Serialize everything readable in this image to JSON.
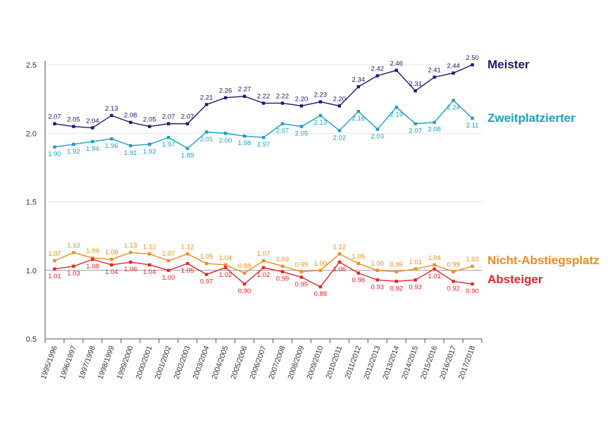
{
  "chart_data": {
    "type": "line",
    "title": "",
    "xlabel": "",
    "ylabel": "",
    "ylim": [
      0.5,
      2.5
    ],
    "yticks": [
      "0.5",
      "1.0",
      "1.5",
      "2.0",
      "2.5"
    ],
    "grid": true,
    "legend": "right, next to line ends",
    "categories": [
      "1995/1996",
      "1996/1997",
      "1997/1998",
      "1998/1999",
      "1999/2000",
      "2000/2001",
      "2001/2002",
      "2002/2003",
      "2003/2004",
      "2004/2005",
      "2005/2006",
      "2006/2007",
      "2007/2008",
      "2008/2009",
      "2009/2010",
      "2010/2011",
      "2011/2012",
      "2012/2013",
      "2013/2014",
      "2014/2015",
      "2015/2016",
      "2016/2017",
      "2017/2018"
    ],
    "series": [
      {
        "name": "Meister",
        "color": "#1b1a6e",
        "values": [
          2.07,
          2.05,
          2.04,
          2.13,
          2.08,
          2.05,
          2.07,
          2.07,
          2.21,
          2.26,
          2.27,
          2.22,
          2.22,
          2.2,
          2.23,
          2.2,
          2.34,
          2.42,
          2.46,
          2.31,
          2.41,
          2.44,
          2.5
        ],
        "labels": [
          "2.07",
          "2.05",
          "2.04",
          "2.13",
          "2.08",
          "2.05",
          "2.07",
          "2.07",
          "2.21",
          "2.26",
          "2.27",
          "2.22",
          "2.22",
          "2.20",
          "2.23",
          "2.20",
          "2.34",
          "2.42",
          "2.46",
          "2.31",
          "2.41",
          "2.44",
          "2.50"
        ]
      },
      {
        "name": "Zweitplatzierter",
        "color": "#1aa0c0",
        "values": [
          1.9,
          1.92,
          1.94,
          1.96,
          1.91,
          1.92,
          1.97,
          1.89,
          2.01,
          2.0,
          1.98,
          1.97,
          2.07,
          2.05,
          2.13,
          2.02,
          2.16,
          2.03,
          2.19,
          2.07,
          2.08,
          2.24,
          2.11
        ],
        "labels": [
          "1.90",
          "1.92",
          "1.94",
          "1.96",
          "1.91",
          "1.92",
          "1.97",
          "1.89",
          "2.01",
          "2.00",
          "1.98",
          "1.97",
          "2.07",
          "2.05",
          "2.13",
          "2.02",
          "2.16",
          "2.03",
          "2.19",
          "2.07",
          "2.08",
          "2.24",
          "2.11"
        ]
      },
      {
        "name": "Nicht-Abstiegsplatz",
        "color": "#f08a1c",
        "values": [
          1.07,
          1.13,
          1.09,
          1.08,
          1.13,
          1.12,
          1.07,
          1.12,
          1.05,
          1.04,
          0.98,
          1.07,
          1.03,
          0.99,
          1.0,
          1.12,
          1.05,
          1.0,
          0.99,
          1.01,
          1.04,
          0.99,
          1.03
        ],
        "labels": [
          "1.07",
          "1.13",
          "1.09",
          "1.08",
          "1.13",
          "1.12",
          "1.07",
          "1.12",
          "1.05",
          "1.04",
          "0.98",
          "1.07",
          "1.03",
          "0.99",
          "1.00",
          "1.12",
          "1.05",
          "1.00",
          "0.99",
          "1.01",
          "1.04",
          "0.99",
          "1.03"
        ]
      },
      {
        "name": "Absteiger",
        "color": "#e0262b",
        "values": [
          1.01,
          1.03,
          1.08,
          1.04,
          1.06,
          1.04,
          1.0,
          1.05,
          0.97,
          1.02,
          0.9,
          1.02,
          0.99,
          0.95,
          0.88,
          1.06,
          0.98,
          0.93,
          0.92,
          0.93,
          1.01,
          0.92,
          0.9
        ],
        "labels": [
          "1.01",
          "1.03",
          "1.08",
          "1.04",
          "1.06",
          "1.04",
          "1.00",
          "1.05",
          "0.97",
          "1.02",
          "0.90",
          "1.02",
          "0.99",
          "0.95",
          "0.88",
          "1.06",
          "0.98",
          "0.93",
          "0.92",
          "0.93",
          "1.01",
          "0.92",
          "0.90"
        ]
      }
    ]
  }
}
